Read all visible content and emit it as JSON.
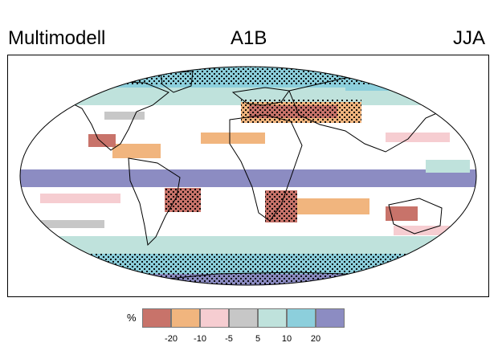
{
  "header": {
    "left_label": "Multimodell",
    "center_label": "A1B",
    "right_label": "JJA"
  },
  "legend": {
    "unit": "%",
    "colors": [
      "#c8736a",
      "#f1b57e",
      "#f6cdd1",
      "#c7c7c7",
      "#bfe2dc",
      "#8ccfdc",
      "#8c8cc2"
    ],
    "tick_labels": [
      "-20",
      "-10",
      "-5",
      "5",
      "10",
      "20"
    ]
  },
  "map": {
    "projection": "robinson",
    "season": "JJA",
    "variable": "precipitation change",
    "stippling": "model agreement dots"
  }
}
